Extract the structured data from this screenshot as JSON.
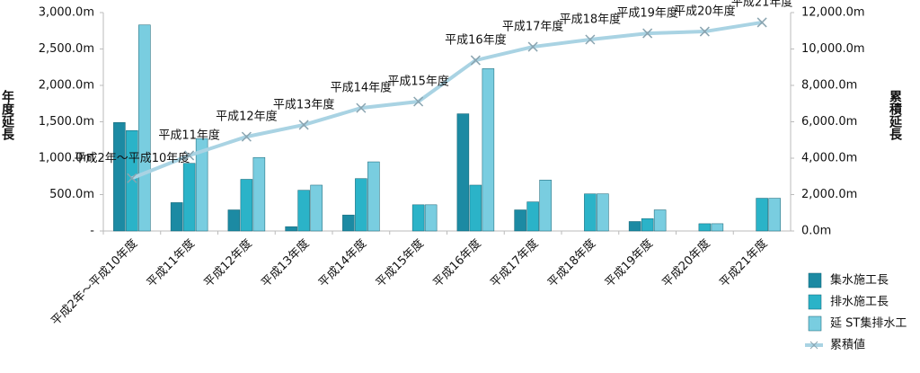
{
  "chart_data": {
    "type": "bar_line",
    "y_label": "年度延長",
    "y2_label": "累積延長",
    "categories": [
      "平成2年～平成10年度",
      "平成11年度",
      "平成12年度",
      "平成13年度",
      "平成14年度",
      "平成15年度",
      "平成16年度",
      "平成17年度",
      "平成18年度",
      "平成19年度",
      "平成20年度",
      "平成21年度"
    ],
    "series": [
      {
        "name": "集水施工長",
        "color": "#1c8aa3",
        "values": [
          1490,
          390,
          290,
          60,
          220,
          0,
          1610,
          290,
          0,
          130,
          0,
          0
        ]
      },
      {
        "name": "排水施工長",
        "color": "#2bb3c8",
        "values": [
          1380,
          930,
          710,
          560,
          720,
          360,
          630,
          400,
          510,
          170,
          100,
          450
        ]
      },
      {
        "name": "延 ST集排水工",
        "color": "#79cde0",
        "values": [
          2830,
          1270,
          1010,
          630,
          950,
          360,
          2230,
          700,
          510,
          290,
          100,
          450
        ]
      },
      {
        "name": "累積値",
        "color": "#a9d3e3",
        "axis": "y2",
        "values": [
          2900,
          4150,
          5180,
          5830,
          6760,
          7110,
          9380,
          10120,
          10520,
          10860,
          10960,
          11460
        ]
      }
    ],
    "ylim": [
      0,
      3000
    ],
    "yticks": [
      {
        "value": 0,
        "label": "-"
      },
      {
        "value": 500,
        "label": "500.0m"
      },
      {
        "value": 1000,
        "label": "1,000.0m"
      },
      {
        "value": 1500,
        "label": "1,500.0m"
      },
      {
        "value": 2000,
        "label": "2,000.0m"
      },
      {
        "value": 2500,
        "label": "2,500.0m"
      },
      {
        "value": 3000,
        "label": "3,000.0m"
      }
    ],
    "y2lim": [
      0,
      12000
    ],
    "y2ticks": [
      {
        "value": 0,
        "label": "0.0m"
      },
      {
        "value": 2000,
        "label": "2,000.0m"
      },
      {
        "value": 4000,
        "label": "4,000.0m"
      },
      {
        "value": 6000,
        "label": "6,000.0m"
      },
      {
        "value": 8000,
        "label": "8,000.0m"
      },
      {
        "value": 10000,
        "label": "10,000.0m"
      },
      {
        "value": 12000,
        "label": "12,000.0m"
      }
    ],
    "legend": "bottom-right"
  }
}
